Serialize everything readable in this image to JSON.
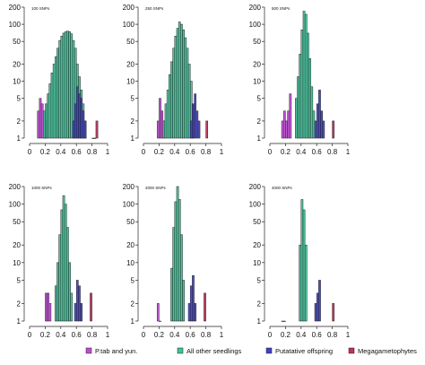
{
  "chart_data": {
    "type": "bar",
    "y_scale": "log",
    "y_ticks": [
      1,
      2,
      5,
      10,
      20,
      50,
      100,
      200
    ],
    "x_ticks": [
      "0",
      "0.2",
      "0.4",
      "0.6",
      "0.8",
      "1"
    ],
    "xlim": [
      0,
      1
    ],
    "ylim": [
      1,
      200
    ],
    "groups": [
      {
        "name": "P.tab and yun.",
        "color": "#c04ad8"
      },
      {
        "name": "All other seedlings",
        "color": "#3dc49a"
      },
      {
        "name": "Putatative offspring",
        "color": "#3f3fc6"
      },
      {
        "name": "Megagametophytes",
        "color": "#c2305a"
      }
    ],
    "panels": [
      {
        "title": "100 SNPs",
        "series": [
          {
            "group": 0,
            "bins": [
              [
                0.1,
                3
              ],
              [
                0.125,
                5
              ],
              [
                0.15,
                4
              ],
              [
                0.175,
                3
              ],
              [
                0.2,
                2
              ]
            ]
          },
          {
            "group": 1,
            "bins": [
              [
                0.175,
                3
              ],
              [
                0.2,
                4
              ],
              [
                0.225,
                6
              ],
              [
                0.25,
                9
              ],
              [
                0.275,
                14
              ],
              [
                0.3,
                20
              ],
              [
                0.325,
                27
              ],
              [
                0.35,
                38
              ],
              [
                0.375,
                52
              ],
              [
                0.4,
                62
              ],
              [
                0.425,
                70
              ],
              [
                0.45,
                74
              ],
              [
                0.475,
                76
              ],
              [
                0.5,
                74
              ],
              [
                0.525,
                68
              ],
              [
                0.55,
                52
              ],
              [
                0.575,
                38
              ],
              [
                0.6,
                20
              ],
              [
                0.625,
                12
              ],
              [
                0.65,
                7
              ],
              [
                0.675,
                4
              ],
              [
                0.7,
                2
              ]
            ]
          },
          {
            "group": 2,
            "bins": [
              [
                0.55,
                2
              ],
              [
                0.575,
                4
              ],
              [
                0.6,
                8
              ],
              [
                0.625,
                6
              ],
              [
                0.65,
                5
              ],
              [
                0.675,
                3
              ],
              [
                0.7,
                2
              ]
            ]
          },
          {
            "group": 3,
            "bins": [
              [
                0.8,
                1
              ],
              [
                0.825,
                1
              ],
              [
                0.85,
                2
              ]
            ]
          }
        ]
      },
      {
        "title": "250 SNPs",
        "series": [
          {
            "group": 0,
            "bins": [
              [
                0.175,
                2
              ],
              [
                0.2,
                5
              ],
              [
                0.225,
                3
              ],
              [
                0.25,
                2
              ]
            ]
          },
          {
            "group": 1,
            "bins": [
              [
                0.25,
                2
              ],
              [
                0.275,
                4
              ],
              [
                0.3,
                7
              ],
              [
                0.325,
                13
              ],
              [
                0.35,
                22
              ],
              [
                0.375,
                38
              ],
              [
                0.4,
                62
              ],
              [
                0.425,
                85
              ],
              [
                0.45,
                110
              ],
              [
                0.475,
                100
              ],
              [
                0.5,
                80
              ],
              [
                0.525,
                58
              ],
              [
                0.55,
                38
              ],
              [
                0.575,
                20
              ],
              [
                0.6,
                10
              ],
              [
                0.625,
                4
              ]
            ]
          },
          {
            "group": 2,
            "bins": [
              [
                0.6,
                2
              ],
              [
                0.625,
                4
              ],
              [
                0.65,
                6
              ],
              [
                0.675,
                3
              ],
              [
                0.7,
                2
              ]
            ]
          },
          {
            "group": 3,
            "bins": [
              [
                0.8,
                2
              ]
            ]
          }
        ]
      },
      {
        "title": "500 SNPs",
        "series": [
          {
            "group": 0,
            "bins": [
              [
                0.15,
                2
              ],
              [
                0.175,
                3
              ],
              [
                0.2,
                2
              ],
              [
                0.225,
                3
              ],
              [
                0.25,
                6
              ]
            ]
          },
          {
            "group": 1,
            "bins": [
              [
                0.325,
                5
              ],
              [
                0.35,
                12
              ],
              [
                0.375,
                30
              ],
              [
                0.4,
                80
              ],
              [
                0.425,
                170
              ],
              [
                0.45,
                150
              ],
              [
                0.475,
                70
              ],
              [
                0.5,
                25
              ],
              [
                0.525,
                8
              ],
              [
                0.55,
                3
              ]
            ]
          },
          {
            "group": 2,
            "bins": [
              [
                0.575,
                2
              ],
              [
                0.6,
                4
              ],
              [
                0.625,
                7
              ],
              [
                0.65,
                3
              ],
              [
                0.675,
                2
              ]
            ]
          },
          {
            "group": 3,
            "bins": [
              [
                0.8,
                2
              ]
            ]
          }
        ]
      },
      {
        "title": "1000 SNPs",
        "series": [
          {
            "group": 0,
            "bins": [
              [
                0.2,
                3
              ],
              [
                0.225,
                3
              ],
              [
                0.25,
                2
              ]
            ]
          },
          {
            "group": 1,
            "bins": [
              [
                0.325,
                4
              ],
              [
                0.35,
                10
              ],
              [
                0.375,
                30
              ],
              [
                0.4,
                80
              ],
              [
                0.425,
                140
              ],
              [
                0.45,
                100
              ],
              [
                0.475,
                40
              ],
              [
                0.5,
                10
              ],
              [
                0.525,
                3
              ]
            ]
          },
          {
            "group": 2,
            "bins": [
              [
                0.575,
                2
              ],
              [
                0.6,
                5
              ],
              [
                0.625,
                4
              ],
              [
                0.65,
                2
              ]
            ]
          },
          {
            "group": 3,
            "bins": [
              [
                0.775,
                3
              ]
            ]
          }
        ]
      },
      {
        "title": "2000 SNPs",
        "series": [
          {
            "group": 0,
            "bins": [
              [
                0.175,
                2
              ],
              [
                0.2,
                1
              ]
            ]
          },
          {
            "group": 1,
            "bins": [
              [
                0.35,
                8
              ],
              [
                0.375,
                40
              ],
              [
                0.4,
                110
              ],
              [
                0.425,
                200
              ],
              [
                0.45,
                120
              ],
              [
                0.475,
                30
              ],
              [
                0.5,
                5
              ]
            ]
          },
          {
            "group": 2,
            "bins": [
              [
                0.575,
                2
              ],
              [
                0.6,
                4
              ],
              [
                0.625,
                6
              ],
              [
                0.65,
                2
              ]
            ]
          },
          {
            "group": 3,
            "bins": [
              [
                0.775,
                3
              ]
            ]
          }
        ]
      },
      {
        "title": "4000 SNPs",
        "series": [
          {
            "group": 0,
            "bins": [
              [
                0.15,
                1
              ],
              [
                0.175,
                1
              ]
            ]
          },
          {
            "group": 1,
            "bins": [
              [
                0.375,
                20
              ],
              [
                0.4,
                120
              ],
              [
                0.425,
                80
              ],
              [
                0.45,
                20
              ]
            ]
          },
          {
            "group": 2,
            "bins": [
              [
                0.575,
                2
              ],
              [
                0.6,
                3
              ],
              [
                0.625,
                5
              ]
            ]
          },
          {
            "group": 3,
            "bins": [
              [
                0.8,
                2
              ]
            ]
          }
        ]
      }
    ]
  }
}
